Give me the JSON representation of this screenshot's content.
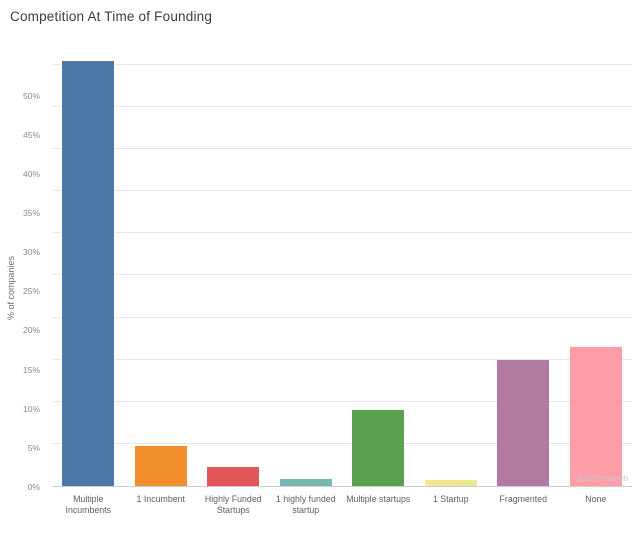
{
  "title": "Competition At Time of Founding",
  "watermark": "@A9Tomaseb",
  "chart_data": {
    "type": "bar",
    "title": "Competition At Time of Founding",
    "xlabel": "",
    "ylabel": "% of companies",
    "ylim": [
      0,
      52
    ],
    "yticks": [
      0,
      5,
      10,
      15,
      20,
      25,
      30,
      35,
      40,
      45,
      50
    ],
    "ytick_suffix": "%",
    "grid": true,
    "legend": "none",
    "categories": [
      "Multiple Incumbents",
      "1 Incumbent",
      "Highly Funded Startups",
      "1 highly funded startup",
      "Multiple startups",
      "1 Startup",
      "Fragmented",
      "None"
    ],
    "values": [
      50.5,
      4.7,
      2.3,
      0.8,
      9.0,
      0.7,
      15.0,
      16.5
    ],
    "colors": [
      "#4e79a7",
      "#f28e2b",
      "#e15759",
      "#76b7b2",
      "#59a14f",
      "#f0e88f",
      "#b07aa1",
      "#ff9da7"
    ]
  }
}
